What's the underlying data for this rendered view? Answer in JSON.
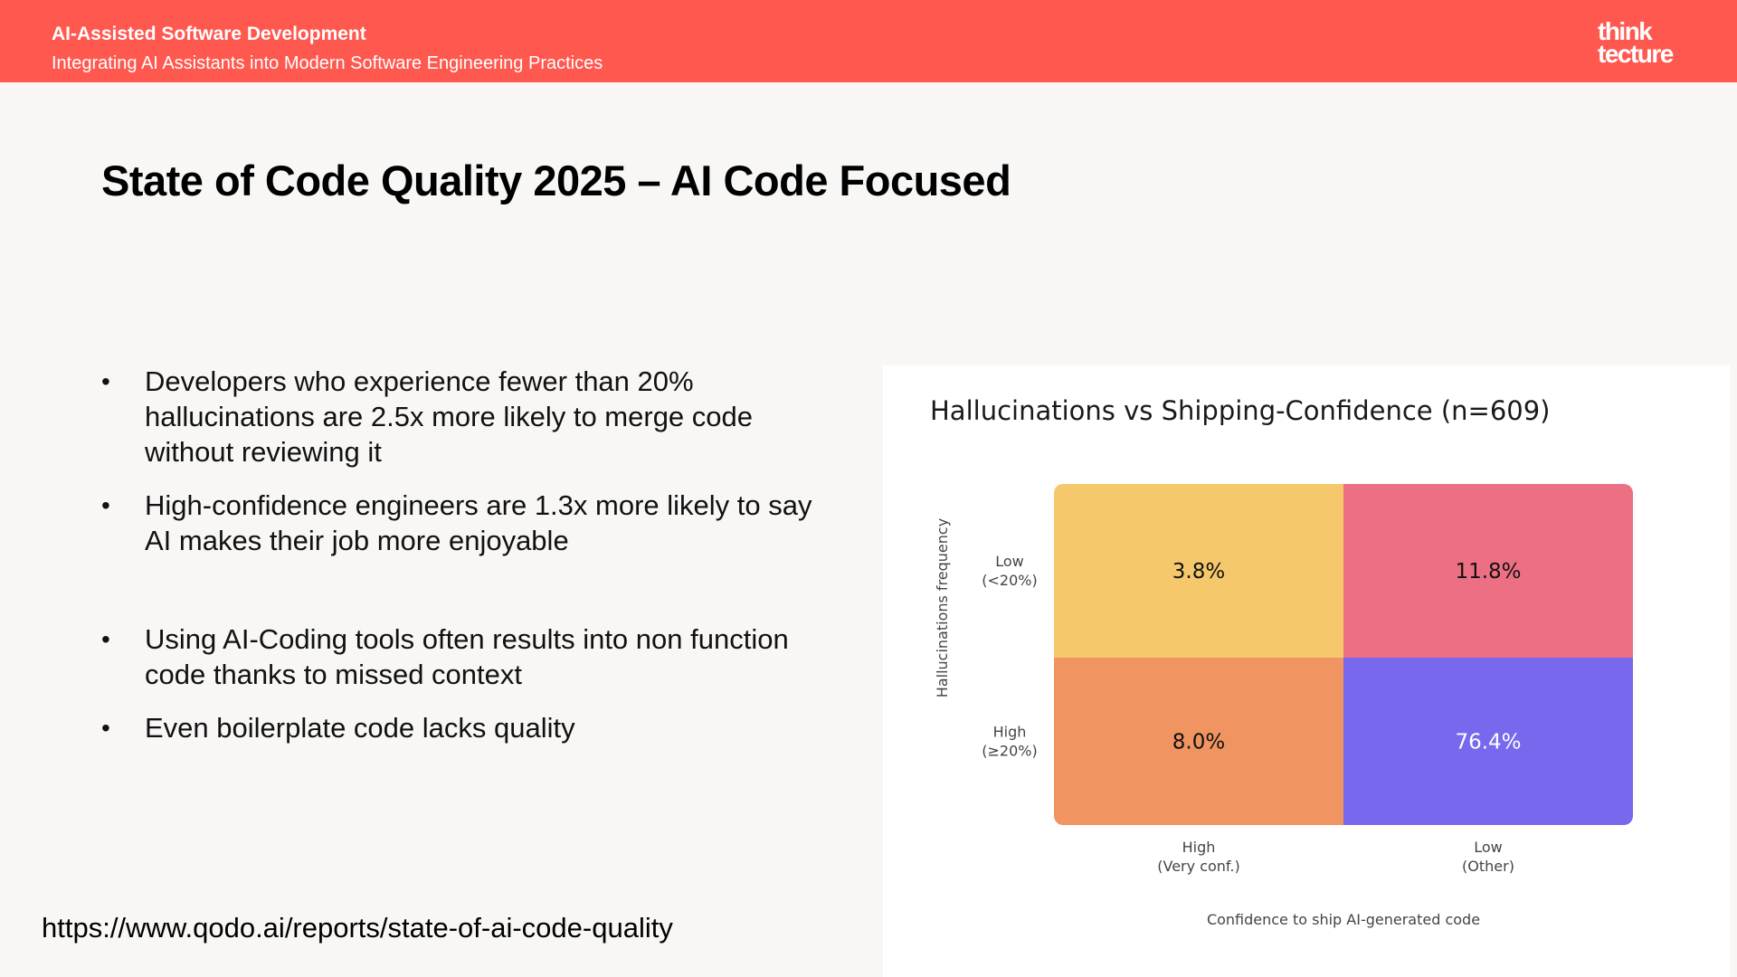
{
  "header": {
    "title": "AI-Assisted Software Development",
    "subtitle": "Integrating AI Assistants into Modern Software Engineering Practices",
    "logo_line1": "think",
    "logo_line2": "tecture",
    "background_color": "#ff584f"
  },
  "slide": {
    "title": "State of Code Quality 2025 – AI Code Focused",
    "bullet_symbol": "•",
    "bullets": [
      "Developers who experience fewer than 20% hallucinations are 2.5x more likely to merge code without reviewing it",
      "High-confidence engineers are 1.3x more likely to say AI makes their job more enjoyable",
      "Using AI-Coding tools often results into non function code thanks to missed context",
      "Even boilerplate code lacks quality"
    ],
    "source_url": "https://www.qodo.ai/reports/state-of-ai-code-quality"
  },
  "chart_data": {
    "type": "heatmap",
    "title": "Hallucinations vs Shipping-Confidence (n=609)",
    "xlabel": "Confidence to ship AI-generated code",
    "ylabel": "Hallucinations frequency",
    "x_categories": [
      [
        "High",
        "(Very conf.)"
      ],
      [
        "Low",
        "(Other)"
      ]
    ],
    "y_categories": [
      [
        "Low",
        "(<20%)"
      ],
      [
        "High",
        "(≥20%)"
      ]
    ],
    "values": [
      [
        3.8,
        11.8
      ],
      [
        8.0,
        76.4
      ]
    ],
    "value_labels": [
      [
        "3.8%",
        "11.8%"
      ],
      [
        "8.0%",
        "76.4%"
      ]
    ],
    "cell_colors": [
      [
        "#f5c96b",
        "#ed6f84"
      ],
      [
        "#f09462",
        "#7868ee"
      ]
    ],
    "label_colors": [
      [
        "#111111",
        "#111111"
      ],
      [
        "#111111",
        "#ffffff"
      ]
    ]
  }
}
